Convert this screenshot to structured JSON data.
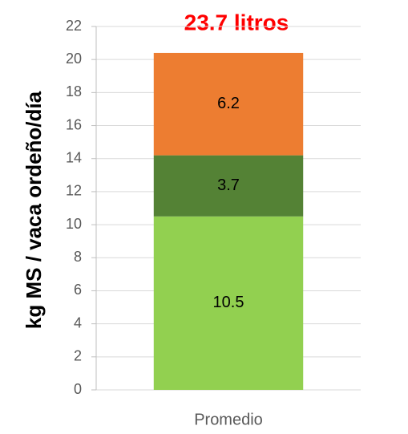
{
  "chart_data": {
    "type": "stacked_bar",
    "ylabel": "kg MS /  vaca ordeño/día",
    "annotation": "23.7 litros",
    "categories": [
      "Promedio"
    ],
    "series": [
      {
        "color": "#92d050",
        "values": [
          10.5
        ]
      },
      {
        "color": "#548235",
        "values": [
          3.7
        ]
      },
      {
        "color": "#ed7d31",
        "values": [
          6.2
        ]
      }
    ],
    "ylim": [
      0,
      22
    ],
    "yticks": [
      0,
      2,
      4,
      6,
      8,
      10,
      12,
      14,
      16,
      18,
      20,
      22
    ],
    "grid": true
  }
}
